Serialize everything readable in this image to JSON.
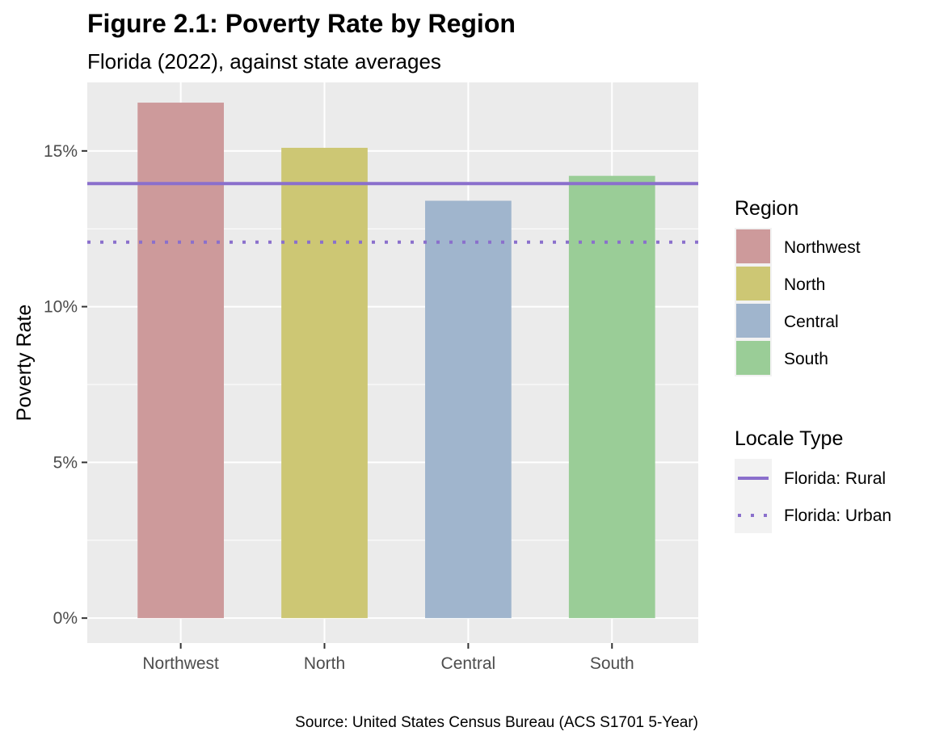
{
  "chart_data": {
    "type": "bar",
    "title": "Figure 2.1: Poverty Rate by Region",
    "subtitle": "Florida (2022), against state averages",
    "ylabel": "Poverty Rate",
    "xlabel": "",
    "caption": "Source: United States Census Bureau (ACS S1701 5-Year)",
    "categories": [
      "Northwest",
      "North",
      "Central",
      "South"
    ],
    "values": [
      16.55,
      15.1,
      13.4,
      14.2
    ],
    "colors": [
      "#cd9a9b",
      "#cdc774",
      "#a0b5cd",
      "#9acd97"
    ],
    "ylim": [
      -0.8,
      17.2
    ],
    "yticks": [
      0,
      5,
      10,
      15
    ],
    "ytick_labels": [
      "0%",
      "5%",
      "10%",
      "15%"
    ],
    "grid": true,
    "reference_lines": [
      {
        "name": "Florida: Rural",
        "value": 13.95,
        "style": "solid",
        "color": "#8a6fcc"
      },
      {
        "name": "Florida: Urban",
        "value": 12.07,
        "style": "dotted",
        "color": "#8a6fcc"
      }
    ],
    "legends": [
      {
        "title": "Region",
        "placement": "right",
        "entries": [
          "Northwest",
          "North",
          "Central",
          "South"
        ]
      },
      {
        "title": "Locale Type",
        "placement": "right",
        "entries": [
          "Florida: Rural",
          "Florida: Urban"
        ]
      }
    ],
    "theme": {
      "panel_background": "#ebebeb",
      "grid_color": "#ffffff"
    }
  }
}
